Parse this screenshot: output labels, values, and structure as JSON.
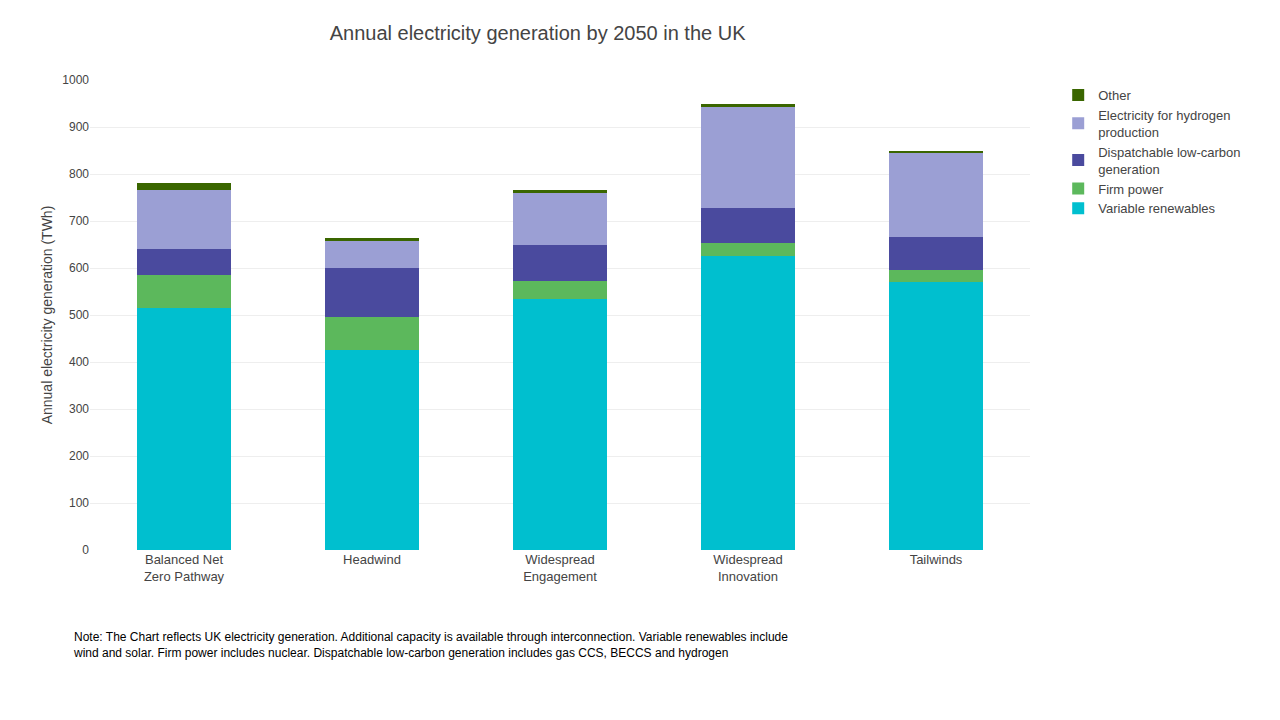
{
  "chart_data": {
    "type": "bar",
    "stacked": true,
    "title": "Annual electricity generation by 2050 in the UK",
    "ylabel": "Annual electricity generation (TWh)",
    "categories": [
      "Balanced Net\nZero Pathway",
      "Headwind",
      "Widespread\nEngagement",
      "Widespread\nInnovation",
      "Tailwinds"
    ],
    "series": [
      {
        "name": "Variable renewables",
        "color": "#00BFCF",
        "values": [
          515,
          425,
          535,
          625,
          570
        ]
      },
      {
        "name": "Firm power",
        "color": "#5CB85C",
        "values": [
          70,
          70,
          38,
          28,
          25
        ]
      },
      {
        "name": "Dispatchable low-carbon\ngeneration",
        "color": "#4A4A9E",
        "values": [
          55,
          105,
          75,
          75,
          72
        ]
      },
      {
        "name": "Electricity for hydrogen\nproduction",
        "color": "#9B9FD4",
        "values": [
          125,
          58,
          112,
          215,
          178
        ]
      },
      {
        "name": "Other",
        "color": "#3A6600",
        "values": [
          15,
          5,
          5,
          5,
          5
        ]
      }
    ],
    "ylim": [
      0,
      1000
    ],
    "yticks": [
      0,
      100,
      200,
      300,
      400,
      500,
      600,
      700,
      800,
      900,
      1000
    ],
    "grid": true,
    "legend": "right",
    "annotations": [
      "Note: The Chart reflects UK electricity generation. Additional capacity is available through interconnection. Variable renewables include\nwind and solar. Firm power includes nuclear. Dispatchable low-carbon generation includes gas CCS, BECCS and hydrogen"
    ]
  }
}
